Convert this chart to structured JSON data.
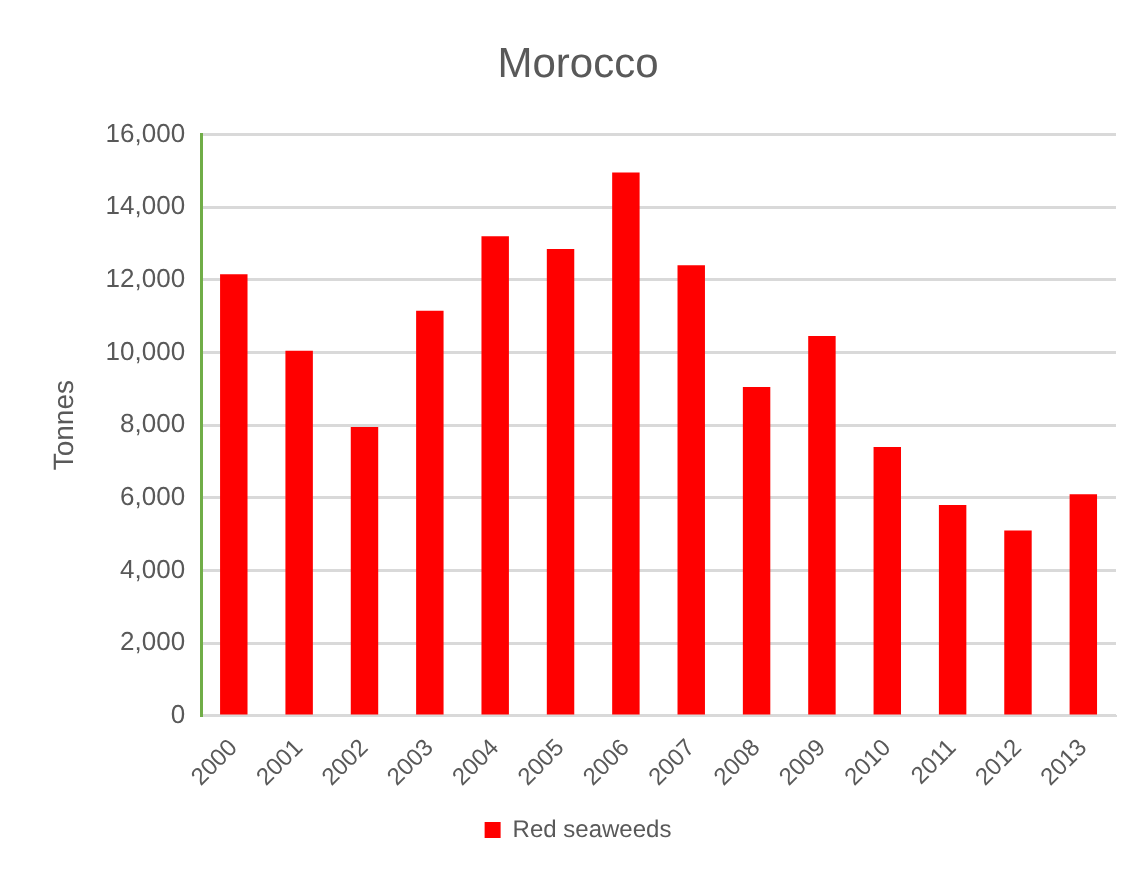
{
  "chart_data": {
    "type": "bar",
    "title": "Morocco",
    "ylabel": "Tonnes",
    "categories": [
      "2000",
      "2001",
      "2002",
      "2003",
      "2004",
      "2005",
      "2006",
      "2007",
      "2008",
      "2009",
      "2010",
      "2011",
      "2012",
      "2013"
    ],
    "series": [
      {
        "name": "Red seaweeds",
        "color": "#ff0000",
        "values": [
          12150,
          10050,
          7950,
          11150,
          13200,
          12850,
          14950,
          12400,
          9050,
          10450,
          7400,
          5800,
          5100,
          6100
        ]
      }
    ],
    "ylim": [
      0,
      16000
    ],
    "yticks": [
      0,
      {
        "value": 2000,
        "label": "2,000"
      },
      {
        "value": 4000,
        "label": "4,000"
      },
      {
        "value": 6000,
        "label": "6,000"
      },
      {
        "value": 8000,
        "label": "8,000"
      },
      {
        "value": 10000,
        "label": "10,000"
      },
      {
        "value": 12000,
        "label": "12,000"
      },
      {
        "value": 14000,
        "label": "14,000"
      },
      {
        "value": 16000,
        "label": "16,000"
      }
    ],
    "grid": "y",
    "legend": "bottom"
  }
}
